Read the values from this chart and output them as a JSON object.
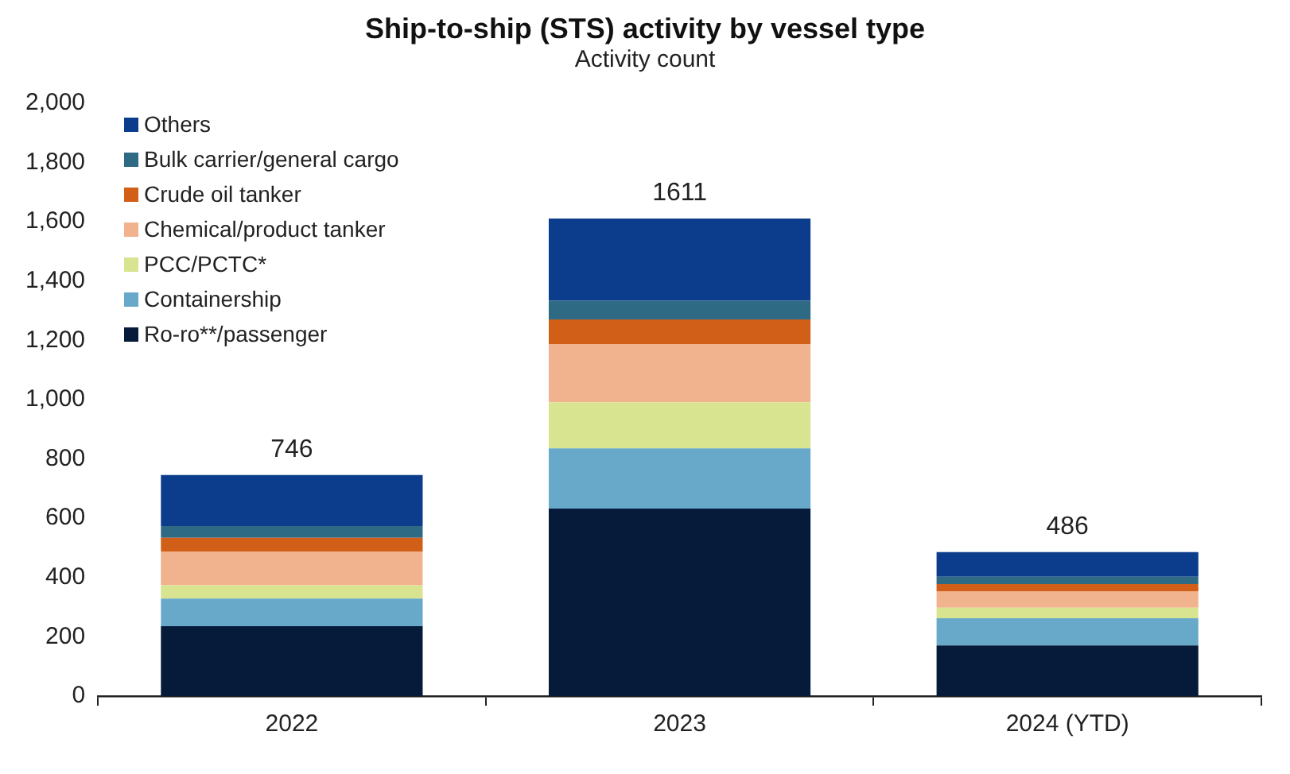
{
  "chart_data": {
    "type": "bar",
    "title": "Ship-to-ship (STS) activity by vessel type",
    "subtitle": "Activity count",
    "categories": [
      "2022",
      "2023",
      "2024 (YTD)"
    ],
    "stacked": true,
    "ylim": [
      0,
      2000
    ],
    "yticks": [
      {
        "value": 0,
        "label": "0"
      },
      {
        "value": 200,
        "label": "200"
      },
      {
        "value": 400,
        "label": "400"
      },
      {
        "value": 600,
        "label": "600"
      },
      {
        "value": 800,
        "label": "800"
      },
      {
        "value": 1000,
        "label": "1,000"
      },
      {
        "value": 1200,
        "label": "1,200"
      },
      {
        "value": 1400,
        "label": "1,400"
      },
      {
        "value": 1600,
        "label": "1,600"
      },
      {
        "value": 1800,
        "label": "1,800"
      },
      {
        "value": 2000,
        "label": "2,000"
      }
    ],
    "grid": false,
    "legend": "top left",
    "totals": [
      "746",
      "1611",
      "486"
    ],
    "series": [
      {
        "name": "Ro-ro**/passenger",
        "color": "#061a3a",
        "values": [
          236,
          633,
          171
        ]
      },
      {
        "name": "Containership",
        "color": "#68a9ca",
        "values": [
          93,
          203,
          92
        ]
      },
      {
        "name": "PCC/PCTC*",
        "color": "#d9e491",
        "values": [
          45,
          155,
          35
        ]
      },
      {
        "name": "Chemical/product tanker",
        "color": "#f1b38e",
        "values": [
          114,
          197,
          56
        ]
      },
      {
        "name": "Crude oil tanker",
        "color": "#d15f17",
        "values": [
          46,
          83,
          24
        ]
      },
      {
        "name": "Bulk carrier/general cargo",
        "color": "#2f6a85",
        "values": [
          40,
          63,
          25
        ]
      },
      {
        "name": "Others",
        "color": "#0b3d8c",
        "values": [
          172,
          277,
          83
        ]
      }
    ]
  }
}
